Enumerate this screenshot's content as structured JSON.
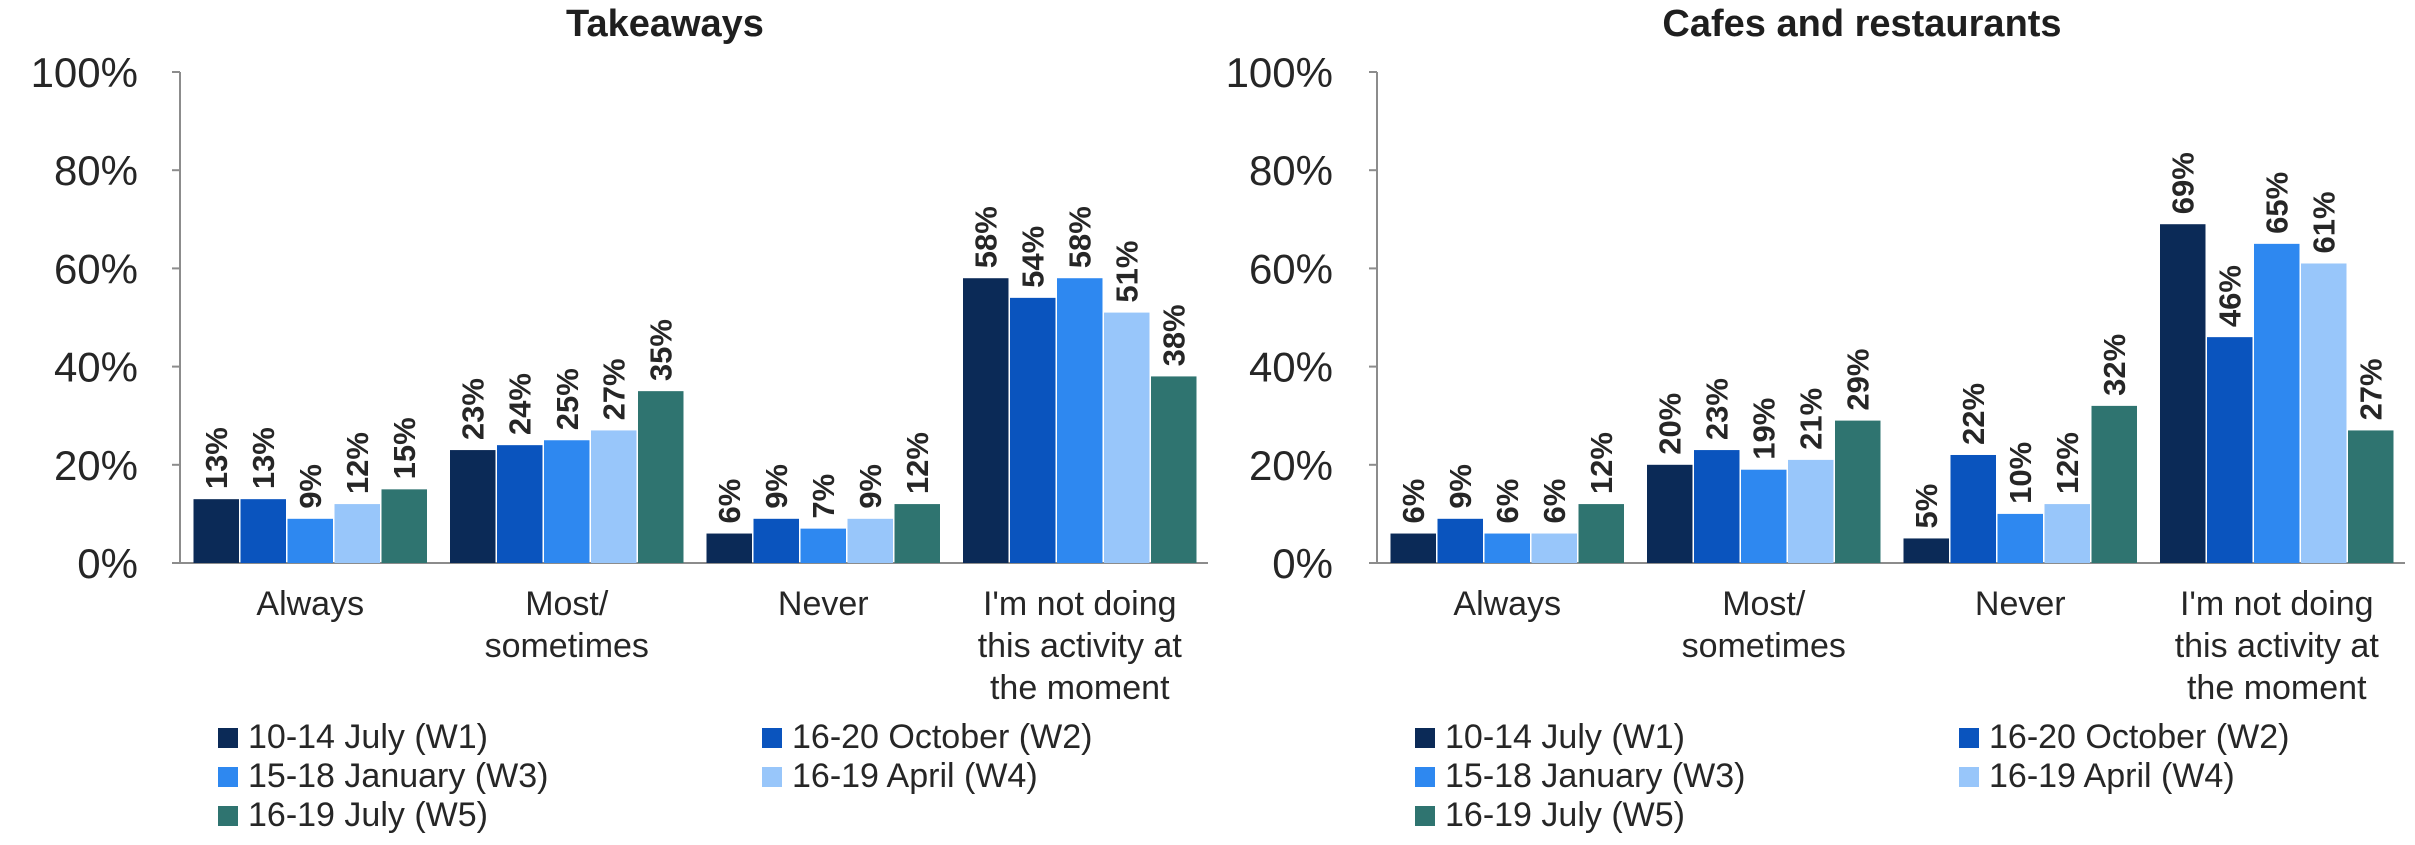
{
  "chart_data": [
    {
      "type": "bar",
      "title": "Takeaways",
      "categories": [
        [
          "Always"
        ],
        [
          "Most/",
          "sometimes"
        ],
        [
          "Never"
        ],
        [
          "I'm not doing",
          "this activity at",
          "the moment"
        ]
      ],
      "ylim": [
        0,
        100
      ],
      "yticks": [
        "0%",
        "20%",
        "40%",
        "60%",
        "80%",
        "100%"
      ],
      "grid": false,
      "legend_position": "bottom",
      "series": [
        {
          "name": "10-14 July (W1)",
          "color": "#0b2a57",
          "values": [
            13,
            23,
            6,
            58
          ],
          "labels": [
            "13%",
            "23%",
            "6%",
            "58%"
          ]
        },
        {
          "name": "16-20 October (W2)",
          "color": "#0a54be",
          "values": [
            13,
            24,
            9,
            54
          ],
          "labels": [
            "13%",
            "24%",
            "9%",
            "54%"
          ]
        },
        {
          "name": "15-18 January (W3)",
          "color": "#2e88f0",
          "values": [
            9,
            25,
            7,
            58
          ],
          "labels": [
            "9%",
            "25%",
            "7%",
            "58%"
          ]
        },
        {
          "name": "16-19 April (W4)",
          "color": "#98c6fa",
          "values": [
            12,
            27,
            9,
            51
          ],
          "labels": [
            "12%",
            "27%",
            "9%",
            "51%"
          ]
        },
        {
          "name": "16-19 July (W5)",
          "color": "#2f7470",
          "values": [
            15,
            35,
            12,
            38
          ],
          "labels": [
            "15%",
            "35%",
            "12%",
            "38%"
          ]
        }
      ]
    },
    {
      "type": "bar",
      "title": "Cafes and restaurants",
      "categories": [
        [
          "Always"
        ],
        [
          "Most/",
          "sometimes"
        ],
        [
          "Never"
        ],
        [
          "I'm not doing",
          "this activity at",
          "the moment"
        ]
      ],
      "ylim": [
        0,
        100
      ],
      "yticks": [
        "0%",
        "20%",
        "40%",
        "60%",
        "80%",
        "100%"
      ],
      "grid": false,
      "legend_position": "bottom",
      "series": [
        {
          "name": "10-14 July (W1)",
          "color": "#0b2a57",
          "values": [
            6,
            20,
            5,
            69
          ],
          "labels": [
            "6%",
            "20%",
            "5%",
            "69%"
          ]
        },
        {
          "name": "16-20 October (W2)",
          "color": "#0a54be",
          "values": [
            9,
            23,
            22,
            46
          ],
          "labels": [
            "9%",
            "23%",
            "22%",
            "46%"
          ]
        },
        {
          "name": "15-18 January (W3)",
          "color": "#2e88f0",
          "values": [
            6,
            19,
            10,
            65
          ],
          "labels": [
            "6%",
            "19%",
            "10%",
            "65%"
          ]
        },
        {
          "name": "16-19 April (W4)",
          "color": "#98c6fa",
          "values": [
            6,
            21,
            12,
            61
          ],
          "labels": [
            "6%",
            "21%",
            "12%",
            "61%"
          ]
        },
        {
          "name": "16-19 July (W5)",
          "color": "#2f7470",
          "values": [
            12,
            29,
            32,
            27
          ],
          "labels": [
            "12%",
            "29%",
            "32%",
            "27%"
          ]
        }
      ]
    }
  ]
}
